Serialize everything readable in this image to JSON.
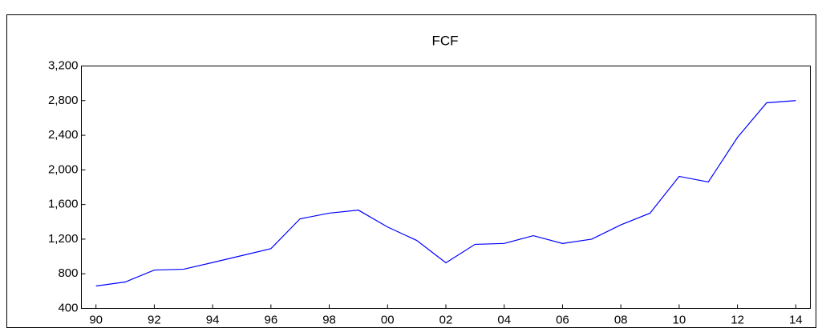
{
  "chart_data": {
    "type": "line",
    "title": "FCF",
    "x": [
      1990,
      1991,
      1992,
      1993,
      1994,
      1995,
      1996,
      1997,
      1998,
      1999,
      2000,
      2001,
      2002,
      2003,
      2004,
      2005,
      2006,
      2007,
      2008,
      2009,
      2010,
      2011,
      2012,
      2013,
      2014
    ],
    "series": [
      {
        "name": "FCF",
        "color": "#0000ff",
        "values": [
          659,
          705,
          843,
          852,
          930,
          1010,
          1090,
          1435,
          1500,
          1535,
          1340,
          1185,
          927,
          1140,
          1150,
          1240,
          1150,
          1200,
          1365,
          1500,
          1925,
          1860,
          2375,
          2775,
          2800
        ]
      }
    ],
    "xlim": [
      1989.5,
      2014.5
    ],
    "xticks": [
      {
        "value": 1990,
        "label": "90"
      },
      {
        "value": 1992,
        "label": "92"
      },
      {
        "value": 1994,
        "label": "94"
      },
      {
        "value": 1996,
        "label": "96"
      },
      {
        "value": 1998,
        "label": "98"
      },
      {
        "value": 2000,
        "label": "00"
      },
      {
        "value": 2002,
        "label": "02"
      },
      {
        "value": 2004,
        "label": "04"
      },
      {
        "value": 2006,
        "label": "06"
      },
      {
        "value": 2008,
        "label": "08"
      },
      {
        "value": 2010,
        "label": "10"
      },
      {
        "value": 2012,
        "label": "12"
      },
      {
        "value": 2014,
        "label": "14"
      }
    ],
    "ylim": [
      400,
      3200
    ],
    "yticks": [
      400,
      800,
      {
        "value": 1200,
        "label": "1,200"
      },
      {
        "value": 1600,
        "label": "1,600"
      },
      {
        "value": 2000,
        "label": "2,000"
      },
      {
        "value": 2400,
        "label": "2,400"
      },
      {
        "value": 2800,
        "label": "2,800"
      },
      {
        "value": 3200,
        "label": "3,200"
      }
    ],
    "grid": false
  }
}
